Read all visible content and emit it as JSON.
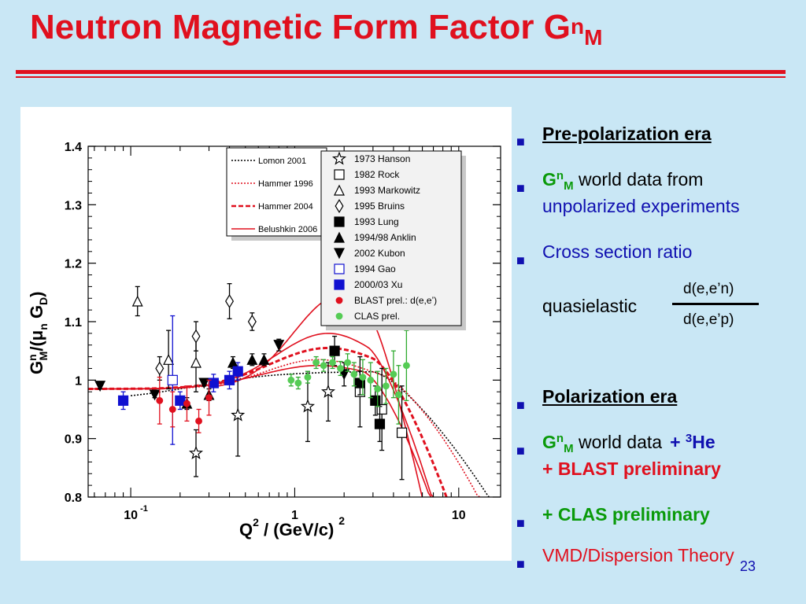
{
  "slide": {
    "title_main": "Neutron Magnetic Form Factor G",
    "title_sup": "n",
    "title_sub": "M",
    "page_number": "23",
    "colors": {
      "background": "#c9e7f5",
      "title": "#e0101e",
      "text_blue": "#1010b0",
      "green": "#0a9a0a"
    }
  },
  "bullets": {
    "b1": "Pre-polarization era",
    "b2_g": "G",
    "b2_sup": "n",
    "b2_sub": "M",
    "b2_rest": " world data from",
    "b2_line2": "unpolarized experiments",
    "b3": "Cross section ratio",
    "quasi_label": "quasielastic",
    "frac_num": "d(e,e’n)",
    "frac_den": "d(e,e’p)",
    "b4": "Polarization era",
    "b5_g": "G",
    "b5_sup": "n",
    "b5_sub": "M",
    "b5_rest": " world data",
    "b5_plus": "+ ",
    "b5_sup3": "3",
    "b5_he": "He",
    "b5_line2": "+ BLAST preliminary",
    "b6": "+ CLAS preliminary",
    "b7": "VMD/Dispersion Theory"
  },
  "chart_data": {
    "type": "scatter",
    "ylabel_main": "G",
    "ylabel_sup": "n",
    "ylabel_sub": "M",
    "ylabel_rest": "/(μ",
    "ylabel_sub2": "n",
    "ylabel_rest2": " G",
    "ylabel_sub3": "D",
    "ylabel_end": ")",
    "xlabel_main": "Q",
    "xlabel_sup": "2",
    "xlabel_rest": " / (GeV/c)",
    "xlabel_sup2": "2",
    "x_scale": "log",
    "xlim": [
      0.055,
      18
    ],
    "ylim": [
      0.8,
      1.4
    ],
    "y_ticks": [
      0.8,
      0.9,
      1.0,
      1.1,
      1.2,
      1.3,
      1.4
    ],
    "y_tick_labels": [
      "0.8",
      "0.9",
      "1",
      "1.1",
      "1.2",
      "1.3",
      "1.4"
    ],
    "x_tick_labels": [
      {
        "x": 0.1,
        "base": "10",
        "exp": "-1"
      },
      {
        "x": 1,
        "base": "1",
        "exp": ""
      },
      {
        "x": 10,
        "base": "10",
        "exp": ""
      }
    ],
    "legend_lines": [
      {
        "name": "Lomon 2001",
        "color": "#000000",
        "style": "dotted"
      },
      {
        "name": "Hammer 1996",
        "color": "#e0101e",
        "style": "dotted"
      },
      {
        "name": "Hammer 2004",
        "color": "#e0101e",
        "style": "dashed"
      },
      {
        "name": "Belushkin 2006",
        "color": "#e0101e",
        "style": "solid"
      }
    ],
    "legend_markers": [
      {
        "name": "1973 Hanson",
        "marker": "star-open",
        "color": "#000000"
      },
      {
        "name": "1982 Rock",
        "marker": "square-open",
        "color": "#000000"
      },
      {
        "name": "1993 Markowitz",
        "marker": "triangle-open",
        "color": "#000000"
      },
      {
        "name": "1995 Bruins",
        "marker": "diamond-open",
        "color": "#000000"
      },
      {
        "name": "1993 Lung",
        "marker": "square-filled",
        "color": "#000000"
      },
      {
        "name": "1994/98 Anklin",
        "marker": "triangle-filled",
        "color": "#000000"
      },
      {
        "name": "2002 Kubon",
        "marker": "triangle-down-filled",
        "color": "#000000"
      },
      {
        "name": "1994 Gao",
        "marker": "square-open",
        "color": "#1010d0"
      },
      {
        "name": "2000/03 Xu",
        "marker": "square-filled",
        "color": "#1010d0"
      },
      {
        "name": "BLAST prel.: d(e,e’)",
        "marker": "circle-filled",
        "color": "#e0101e"
      },
      {
        "name": "CLAS prel.",
        "marker": "circle-filled",
        "color": "#55cc55"
      }
    ],
    "series": [
      {
        "name": "1973 Hanson",
        "marker": "star-open",
        "color": "#000000",
        "points": [
          [
            0.25,
            0.875,
            0.04
          ],
          [
            0.45,
            0.94,
            0.07
          ],
          [
            1.2,
            0.955,
            0.06
          ],
          [
            1.6,
            0.98,
            0.05
          ]
        ]
      },
      {
        "name": "1982 Rock",
        "marker": "square-open",
        "color": "#000000",
        "points": [
          [
            2.5,
            0.98,
            0.06
          ],
          [
            3.4,
            0.95,
            0.07
          ],
          [
            4.5,
            0.91,
            0.08
          ]
        ]
      },
      {
        "name": "1993 Markowitz",
        "marker": "triangle-open",
        "color": "#000000",
        "points": [
          [
            0.11,
            1.135,
            0.025
          ],
          [
            0.17,
            1.035,
            0.05
          ],
          [
            0.25,
            1.03,
            0.05
          ]
        ]
      },
      {
        "name": "1995 Bruins",
        "marker": "diamond-open",
        "color": "#000000",
        "points": [
          [
            0.15,
            1.02,
            0.02
          ],
          [
            0.25,
            1.075,
            0.025
          ],
          [
            0.4,
            1.135,
            0.03
          ],
          [
            0.55,
            1.1,
            0.015
          ]
        ]
      },
      {
        "name": "1993 Lung",
        "marker": "square-filled",
        "color": "#000000",
        "points": [
          [
            1.75,
            1.05,
            0.025
          ],
          [
            2.5,
            0.995,
            0.02
          ],
          [
            3.1,
            0.965,
            0.025
          ],
          [
            3.3,
            0.925,
            0.03
          ]
        ]
      },
      {
        "name": "1994/98 Anklin",
        "marker": "triangle-filled",
        "color": "#000000",
        "points": [
          [
            0.22,
            0.96,
            0.01
          ],
          [
            0.3,
            0.975,
            0.01
          ],
          [
            0.42,
            1.03,
            0.01
          ],
          [
            0.55,
            1.035,
            0.01
          ],
          [
            0.65,
            1.035,
            0.01
          ]
        ]
      },
      {
        "name": "2002 Kubon",
        "marker": "triangle-down-filled",
        "color": "#000000",
        "points": [
          [
            0.065,
            0.99,
            0.005
          ],
          [
            0.14,
            0.975,
            0.005
          ],
          [
            0.28,
            0.995,
            0.005
          ],
          [
            0.8,
            1.06,
            0.01
          ],
          [
            2.0,
            1.01,
            0.02
          ]
        ]
      },
      {
        "name": "1994 Gao",
        "marker": "square-open",
        "color": "#1010d0",
        "points": [
          [
            0.18,
            1.0,
            0.11
          ]
        ]
      },
      {
        "name": "2000/03 Xu",
        "marker": "square-filled",
        "color": "#1010d0",
        "points": [
          [
            0.09,
            0.965,
            0.015
          ],
          [
            0.2,
            0.965,
            0.015
          ],
          [
            0.32,
            0.995,
            0.015
          ],
          [
            0.4,
            1.0,
            0.015
          ],
          [
            0.45,
            1.015,
            0.015
          ]
        ]
      },
      {
        "name": "BLAST prel.: d(e,e’)",
        "marker": "circle-filled",
        "color": "#e0101e",
        "points": [
          [
            0.15,
            0.965,
            0.04
          ],
          [
            0.18,
            0.95,
            0.03
          ],
          [
            0.22,
            0.96,
            0.03
          ],
          [
            0.26,
            0.93,
            0.02
          ],
          [
            0.3,
            0.97,
            0.03
          ]
        ]
      },
      {
        "name": "CLAS prel.",
        "marker": "circle-filled",
        "color": "#55cc55",
        "points": [
          [
            0.95,
            1.0,
            0.01
          ],
          [
            1.05,
            0.995,
            0.01
          ],
          [
            1.2,
            1.005,
            0.01
          ],
          [
            1.35,
            1.03,
            0.01
          ],
          [
            1.5,
            1.025,
            0.01
          ],
          [
            1.7,
            1.03,
            0.01
          ],
          [
            1.9,
            1.02,
            0.012
          ],
          [
            2.1,
            1.03,
            0.015
          ],
          [
            2.3,
            1.01,
            0.02
          ],
          [
            2.6,
            1.005,
            0.03
          ],
          [
            2.9,
            1.0,
            0.03
          ],
          [
            3.2,
            0.985,
            0.03
          ],
          [
            3.6,
            0.99,
            0.03
          ],
          [
            4.0,
            1.01,
            0.04
          ],
          [
            4.3,
            0.975,
            0.05
          ],
          [
            4.8,
            1.025,
            0.06
          ]
        ]
      }
    ]
  }
}
